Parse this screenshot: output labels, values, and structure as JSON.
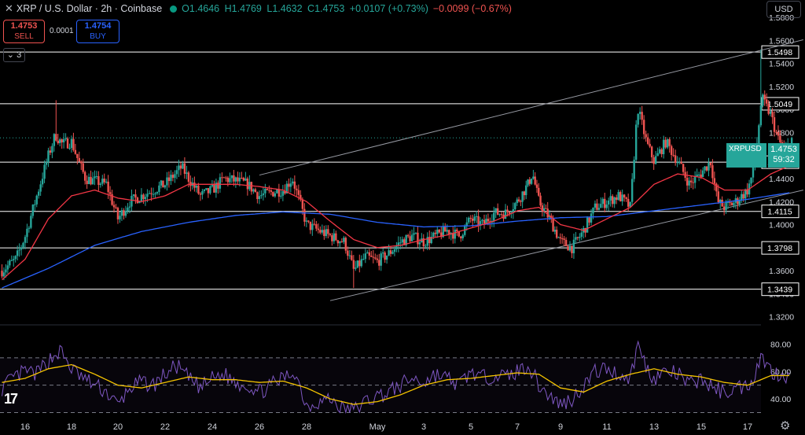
{
  "header": {
    "title": "XRP / U.S. Dollar · 2h · Coinbase",
    "open": "O1.4646",
    "high": "H1.4769",
    "low": "L1.4632",
    "close": "C1.4753",
    "change": "+0.0107 (+0.73%)",
    "change2": "−0.0099 (−0.67%)"
  },
  "trade": {
    "sell_price": "1.4753",
    "sell_label": "SELL",
    "spread": "0.0001",
    "buy_price": "1.4754",
    "buy_label": "BUY"
  },
  "indicators_toggle": "3",
  "currency": "USD",
  "symbol_label": "XRPUSD",
  "last_price": "1.4753",
  "countdown": "59:32",
  "colors": {
    "up": "#26a69a",
    "down": "#ef5350",
    "ema_fast": "#f23645",
    "ema_slow": "#2962ff",
    "rsi": "#7e57c2",
    "rsi_ma": "#f5c400",
    "level": "#ffffff",
    "channel": "#9598a1"
  },
  "chart_data": {
    "type": "candlestick",
    "x_ticks": [
      "16",
      "18",
      "20",
      "22",
      "24",
      "26",
      "28",
      "May",
      "3",
      "5",
      "7",
      "9",
      "11",
      "13",
      "15",
      "17"
    ],
    "y_ticks": [
      "1.5800",
      "1.5600",
      "1.5400",
      "1.5200",
      "1.5000",
      "1.4800",
      "1.4600",
      "1.4400",
      "1.4200",
      "1.4000",
      "1.3800",
      "1.3600",
      "1.3400",
      "1.3200"
    ],
    "ylim": [
      1.315,
      1.595
    ],
    "horizontal_levels": [
      "1.5498",
      "1.5049",
      "1.4542",
      "1.4115",
      "1.3798",
      "1.3439"
    ],
    "channel": {
      "upper": [
        {
          "day": 26.0,
          "price": 1.443
        },
        {
          "day": 18.0,
          "price": 1.5605
        }
      ],
      "lower": [
        {
          "day": 29.0,
          "price": 1.334
        },
        {
          "day": 18.0,
          "price": 1.43
        }
      ]
    },
    "close_anchors": [
      [
        15.0,
        1.36
      ],
      [
        15.6,
        1.37
      ],
      [
        16.0,
        1.39
      ],
      [
        16.5,
        1.425
      ],
      [
        17.0,
        1.46
      ],
      [
        17.3,
        1.478
      ],
      [
        17.6,
        1.47
      ],
      [
        18.0,
        1.472
      ],
      [
        18.3,
        1.455
      ],
      [
        18.6,
        1.44
      ],
      [
        19.0,
        1.438
      ],
      [
        19.5,
        1.435
      ],
      [
        20.0,
        1.405
      ],
      [
        20.5,
        1.42
      ],
      [
        21.0,
        1.425
      ],
      [
        22.0,
        1.435
      ],
      [
        22.7,
        1.45
      ],
      [
        23.0,
        1.44
      ],
      [
        23.5,
        1.425
      ],
      [
        24.0,
        1.43
      ],
      [
        24.5,
        1.44
      ],
      [
        25.0,
        1.438
      ],
      [
        25.5,
        1.435
      ],
      [
        26.0,
        1.425
      ],
      [
        26.5,
        1.428
      ],
      [
        27.0,
        1.43
      ],
      [
        27.4,
        1.44
      ],
      [
        27.7,
        1.42
      ],
      [
        28.0,
        1.4
      ],
      [
        28.5,
        1.395
      ],
      [
        29.0,
        1.39
      ],
      [
        29.6,
        1.385
      ],
      [
        30.0,
        1.36
      ],
      [
        30.5,
        1.372
      ],
      [
        31.0,
        1.368
      ],
      [
        31.5,
        1.375
      ],
      [
        32.0,
        1.385
      ],
      [
        32.5,
        1.39
      ],
      [
        33.0,
        1.385
      ],
      [
        33.5,
        1.39
      ],
      [
        34.0,
        1.395
      ],
      [
        34.5,
        1.39
      ],
      [
        35.0,
        1.405
      ],
      [
        35.5,
        1.4
      ],
      [
        36.0,
        1.41
      ],
      [
        36.5,
        1.41
      ],
      [
        37.0,
        1.42
      ],
      [
        37.5,
        1.435
      ],
      [
        37.7,
        1.445
      ],
      [
        38.0,
        1.42
      ],
      [
        38.5,
        1.405
      ],
      [
        39.0,
        1.385
      ],
      [
        39.5,
        1.38
      ],
      [
        40.0,
        1.395
      ],
      [
        40.5,
        1.415
      ],
      [
        41.0,
        1.42
      ],
      [
        41.5,
        1.425
      ],
      [
        42.0,
        1.415
      ],
      [
        42.3,
        1.502
      ],
      [
        42.7,
        1.47
      ],
      [
        43.0,
        1.455
      ],
      [
        43.5,
        1.472
      ],
      [
        44.0,
        1.455
      ],
      [
        44.5,
        1.435
      ],
      [
        45.0,
        1.445
      ],
      [
        45.4,
        1.455
      ],
      [
        45.7,
        1.42
      ],
      [
        46.0,
        1.415
      ],
      [
        46.5,
        1.42
      ],
      [
        47.0,
        1.43
      ],
      [
        47.3,
        1.45
      ],
      [
        47.6,
        1.51
      ],
      [
        48.0,
        1.495
      ],
      [
        48.3,
        1.475
      ],
      [
        48.6,
        1.462
      ],
      [
        48.9,
        1.4753
      ]
    ],
    "ema_fast_anchors": [
      [
        15.0,
        1.352
      ],
      [
        16.0,
        1.37
      ],
      [
        17.0,
        1.405
      ],
      [
        18.0,
        1.425
      ],
      [
        19.0,
        1.43
      ],
      [
        20.0,
        1.423
      ],
      [
        21.0,
        1.42
      ],
      [
        22.0,
        1.425
      ],
      [
        23.0,
        1.435
      ],
      [
        24.0,
        1.435
      ],
      [
        25.0,
        1.435
      ],
      [
        26.0,
        1.433
      ],
      [
        27.0,
        1.43
      ],
      [
        28.0,
        1.42
      ],
      [
        29.0,
        1.403
      ],
      [
        30.0,
        1.387
      ],
      [
        31.0,
        1.38
      ],
      [
        32.0,
        1.382
      ],
      [
        33.0,
        1.387
      ],
      [
        34.0,
        1.391
      ],
      [
        35.0,
        1.397
      ],
      [
        36.0,
        1.403
      ],
      [
        37.0,
        1.412
      ],
      [
        38.0,
        1.415
      ],
      [
        39.0,
        1.4
      ],
      [
        40.0,
        1.395
      ],
      [
        41.0,
        1.405
      ],
      [
        42.0,
        1.415
      ],
      [
        43.0,
        1.435
      ],
      [
        44.0,
        1.444
      ],
      [
        45.0,
        1.441
      ],
      [
        46.0,
        1.43
      ],
      [
        47.0,
        1.43
      ],
      [
        48.0,
        1.444
      ],
      [
        48.9,
        1.452
      ]
    ],
    "ema_slow_anchors": [
      [
        15.0,
        1.345
      ],
      [
        17.0,
        1.362
      ],
      [
        19.0,
        1.382
      ],
      [
        21.0,
        1.394
      ],
      [
        23.0,
        1.402
      ],
      [
        25.0,
        1.408
      ],
      [
        27.0,
        1.411
      ],
      [
        29.0,
        1.409
      ],
      [
        31.0,
        1.402
      ],
      [
        33.0,
        1.398
      ],
      [
        35.0,
        1.399
      ],
      [
        37.0,
        1.403
      ],
      [
        39.0,
        1.406
      ],
      [
        41.0,
        1.407
      ],
      [
        43.0,
        1.412
      ],
      [
        45.0,
        1.417
      ],
      [
        47.0,
        1.422
      ],
      [
        48.9,
        1.428
      ]
    ],
    "rsi": {
      "y_ticks": [
        "80.00",
        "60.00",
        "40.00"
      ],
      "ylim": [
        28,
        90
      ],
      "bands": [
        30,
        50,
        70
      ],
      "value_anchors": [
        [
          15.0,
          48
        ],
        [
          15.5,
          55
        ],
        [
          16.0,
          60
        ],
        [
          16.5,
          58
        ],
        [
          17.0,
          68
        ],
        [
          17.5,
          75
        ],
        [
          18.0,
          62
        ],
        [
          18.5,
          55
        ],
        [
          19.0,
          50
        ],
        [
          19.5,
          45
        ],
        [
          20.0,
          35
        ],
        [
          20.5,
          48
        ],
        [
          21.0,
          52
        ],
        [
          21.5,
          50
        ],
        [
          22.0,
          58
        ],
        [
          22.5,
          64
        ],
        [
          23.0,
          55
        ],
        [
          23.5,
          48
        ],
        [
          24.0,
          55
        ],
        [
          24.5,
          58
        ],
        [
          25.0,
          52
        ],
        [
          25.5,
          50
        ],
        [
          26.0,
          45
        ],
        [
          26.5,
          50
        ],
        [
          27.0,
          55
        ],
        [
          27.5,
          60
        ],
        [
          28.0,
          35
        ],
        [
          28.5,
          38
        ],
        [
          29.0,
          40
        ],
        [
          29.5,
          33
        ],
        [
          30.0,
          32
        ],
        [
          30.5,
          38
        ],
        [
          31.0,
          42
        ],
        [
          31.5,
          45
        ],
        [
          32.0,
          50
        ],
        [
          32.5,
          55
        ],
        [
          33.0,
          52
        ],
        [
          33.5,
          58
        ],
        [
          34.0,
          55
        ],
        [
          34.5,
          50
        ],
        [
          35.0,
          60
        ],
        [
          35.5,
          55
        ],
        [
          36.0,
          58
        ],
        [
          36.5,
          56
        ],
        [
          37.0,
          60
        ],
        [
          37.5,
          65
        ],
        [
          38.0,
          50
        ],
        [
          38.5,
          42
        ],
        [
          39.0,
          36
        ],
        [
          39.5,
          40
        ],
        [
          40.0,
          50
        ],
        [
          40.5,
          60
        ],
        [
          41.0,
          62
        ],
        [
          41.5,
          58
        ],
        [
          42.0,
          55
        ],
        [
          42.3,
          80
        ],
        [
          42.7,
          62
        ],
        [
          43.0,
          55
        ],
        [
          43.5,
          60
        ],
        [
          44.0,
          58
        ],
        [
          44.5,
          50
        ],
        [
          45.0,
          55
        ],
        [
          45.5,
          48
        ],
        [
          46.0,
          45
        ],
        [
          46.5,
          48
        ],
        [
          47.0,
          50
        ],
        [
          47.3,
          58
        ],
        [
          47.6,
          72
        ],
        [
          48.0,
          60
        ],
        [
          48.5,
          58
        ],
        [
          48.9,
          57
        ]
      ],
      "ma_anchors": [
        [
          15.0,
          52
        ],
        [
          16.0,
          55
        ],
        [
          17.0,
          62
        ],
        [
          18.0,
          65
        ],
        [
          19.0,
          58
        ],
        [
          20.0,
          50
        ],
        [
          21.0,
          48
        ],
        [
          22.0,
          52
        ],
        [
          23.0,
          56
        ],
        [
          24.0,
          54
        ],
        [
          25.0,
          54
        ],
        [
          26.0,
          52
        ],
        [
          27.0,
          53
        ],
        [
          28.0,
          48
        ],
        [
          29.0,
          40
        ],
        [
          30.0,
          36
        ],
        [
          31.0,
          38
        ],
        [
          32.0,
          43
        ],
        [
          33.0,
          50
        ],
        [
          34.0,
          54
        ],
        [
          35.0,
          55
        ],
        [
          36.0,
          57
        ],
        [
          37.0,
          59
        ],
        [
          38.0,
          58
        ],
        [
          39.0,
          48
        ],
        [
          40.0,
          45
        ],
        [
          41.0,
          53
        ],
        [
          42.0,
          58
        ],
        [
          43.0,
          62
        ],
        [
          44.0,
          58
        ],
        [
          45.0,
          56
        ],
        [
          46.0,
          52
        ],
        [
          47.0,
          50
        ],
        [
          48.0,
          57
        ],
        [
          48.9,
          57
        ]
      ]
    }
  }
}
